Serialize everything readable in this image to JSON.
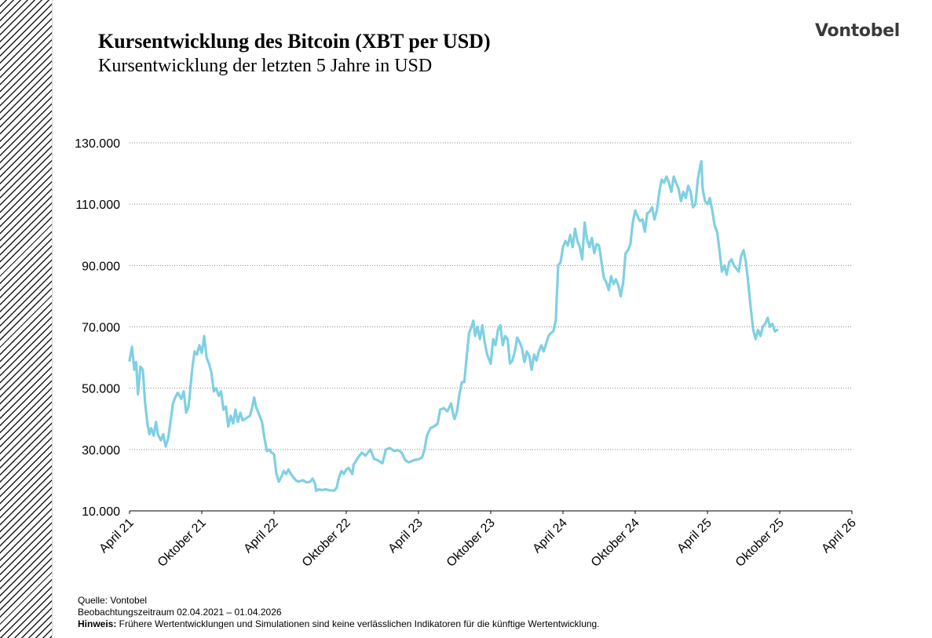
{
  "header": {
    "title": "Kursentwicklung des Bitcoin (XBT per USD)",
    "subtitle": "Kursentwicklung der letzten 5 Jahre in USD",
    "logo_text": "Vontobel"
  },
  "footer": {
    "source": "Quelle: Vontobel",
    "period": "Beobachtungszeitraum  02.04.2021 – 01.04.2026",
    "note_label": "Hinweis:",
    "note_text": " Frühere Wertentwicklungen und Simulationen sind keine verlässlichen Indikatoren für die künftige Wertentwicklung."
  },
  "colors": {
    "line": "#7fd0e2",
    "grid": "#888888",
    "hatch": "#1a1a1a"
  },
  "chart_data": {
    "type": "line",
    "title": "Kursentwicklung des Bitcoin (XBT per USD)",
    "subtitle": "Kursentwicklung der letzten 5 Jahre in USD",
    "xlabel": "",
    "ylabel": "",
    "ylim": [
      10000,
      130000
    ],
    "y_ticks": [
      10000,
      30000,
      50000,
      70000,
      90000,
      110000,
      130000
    ],
    "y_tick_labels": [
      "10.000",
      "30.000",
      "50.000",
      "70.000",
      "90.000",
      "110.000",
      "130.000"
    ],
    "x_tick_labels": [
      "April 21",
      "Oktober 21",
      "April 22",
      "Oktober 22",
      "April 23",
      "Oktober 23",
      "April 24",
      "Oktober 24",
      "April 25",
      "Oktober 25",
      "April 26"
    ],
    "grid": "horizontal dotted",
    "x_unit": "months since April 2021",
    "series": [
      {
        "values": [
          [
            0.0,
            59000
          ],
          [
            0.2,
            63500
          ],
          [
            0.4,
            56000
          ],
          [
            0.55,
            58500
          ],
          [
            0.7,
            48000
          ],
          [
            0.9,
            57000
          ],
          [
            1.1,
            56000
          ],
          [
            1.3,
            45000
          ],
          [
            1.5,
            38000
          ],
          [
            1.65,
            35000
          ],
          [
            1.8,
            37000
          ],
          [
            2.0,
            34500
          ],
          [
            2.2,
            39000
          ],
          [
            2.35,
            35000
          ],
          [
            2.6,
            33000
          ],
          [
            2.8,
            35000
          ],
          [
            3.0,
            31000
          ],
          [
            3.2,
            33500
          ],
          [
            3.4,
            39000
          ],
          [
            3.6,
            45000
          ],
          [
            3.8,
            47000
          ],
          [
            4.0,
            48500
          ],
          [
            4.3,
            46500
          ],
          [
            4.5,
            49000
          ],
          [
            4.7,
            42000
          ],
          [
            4.9,
            44000
          ],
          [
            5.0,
            48000
          ],
          [
            5.2,
            56000
          ],
          [
            5.4,
            62000
          ],
          [
            5.6,
            61000
          ],
          [
            5.8,
            64000
          ],
          [
            6.0,
            61500
          ],
          [
            6.2,
            67000
          ],
          [
            6.4,
            60000
          ],
          [
            6.6,
            58000
          ],
          [
            6.8,
            55000
          ],
          [
            7.0,
            49000
          ],
          [
            7.2,
            50000
          ],
          [
            7.4,
            47500
          ],
          [
            7.6,
            49000
          ],
          [
            7.8,
            43000
          ],
          [
            8.0,
            44000
          ],
          [
            8.2,
            37500
          ],
          [
            8.4,
            41000
          ],
          [
            8.6,
            38500
          ],
          [
            8.8,
            43000
          ],
          [
            9.0,
            39000
          ],
          [
            9.2,
            42000
          ],
          [
            9.4,
            39500
          ],
          [
            10.0,
            41000
          ],
          [
            10.2,
            44000
          ],
          [
            10.35,
            47000
          ],
          [
            10.5,
            44000
          ],
          [
            10.7,
            42000
          ],
          [
            11.0,
            39000
          ],
          [
            11.2,
            34000
          ],
          [
            11.4,
            29500
          ],
          [
            11.6,
            30000
          ],
          [
            11.8,
            29000
          ],
          [
            12.0,
            28500
          ],
          [
            12.2,
            22000
          ],
          [
            12.4,
            19500
          ],
          [
            12.6,
            21000
          ],
          [
            12.8,
            23000
          ],
          [
            13.0,
            22000
          ],
          [
            13.2,
            23500
          ],
          [
            13.4,
            22000
          ],
          [
            13.6,
            21000
          ],
          [
            13.8,
            20000
          ],
          [
            14.0,
            19500
          ],
          [
            14.4,
            20000
          ],
          [
            14.7,
            19300
          ],
          [
            15.0,
            19500
          ],
          [
            15.2,
            20500
          ],
          [
            15.4,
            19000
          ],
          [
            15.5,
            16500
          ],
          [
            15.7,
            17000
          ],
          [
            16.0,
            16800
          ],
          [
            16.3,
            17000
          ],
          [
            16.6,
            16700
          ],
          [
            17.0,
            16600
          ],
          [
            17.2,
            17500
          ],
          [
            17.4,
            21000
          ],
          [
            17.6,
            23000
          ],
          [
            17.8,
            22000
          ],
          [
            18.0,
            23500
          ],
          [
            18.2,
            24000
          ],
          [
            18.5,
            22000
          ],
          [
            18.6,
            25000
          ],
          [
            19.0,
            27500
          ],
          [
            19.3,
            29000
          ],
          [
            19.6,
            28000
          ],
          [
            20.0,
            30000
          ],
          [
            20.3,
            27000
          ],
          [
            20.6,
            26500
          ],
          [
            21.0,
            25500
          ],
          [
            21.3,
            30000
          ],
          [
            21.6,
            30500
          ],
          [
            22.0,
            29500
          ],
          [
            22.3,
            29800
          ],
          [
            22.6,
            29000
          ],
          [
            22.9,
            26500
          ],
          [
            23.2,
            25800
          ],
          [
            23.6,
            26500
          ],
          [
            24.0,
            26800
          ],
          [
            24.3,
            27500
          ],
          [
            24.5,
            30000
          ],
          [
            24.7,
            34500
          ],
          [
            25.0,
            37000
          ],
          [
            25.3,
            37500
          ],
          [
            25.6,
            38500
          ],
          [
            25.8,
            43000
          ],
          [
            26.1,
            43500
          ],
          [
            26.4,
            42500
          ],
          [
            26.7,
            45000
          ],
          [
            26.9,
            41000
          ],
          [
            27.0,
            40000
          ],
          [
            27.2,
            42500
          ],
          [
            27.4,
            48000
          ],
          [
            27.6,
            52000
          ],
          [
            27.8,
            52000
          ],
          [
            28.0,
            60000
          ],
          [
            28.2,
            68000
          ],
          [
            28.4,
            70000
          ],
          [
            28.55,
            72000
          ],
          [
            28.7,
            67000
          ],
          [
            28.9,
            70000
          ],
          [
            29.1,
            66000
          ],
          [
            29.3,
            70500
          ],
          [
            29.5,
            65000
          ],
          [
            29.7,
            61000
          ],
          [
            29.8,
            60000
          ],
          [
            30.0,
            58000
          ],
          [
            30.2,
            66000
          ],
          [
            30.4,
            64000
          ],
          [
            30.6,
            69000
          ],
          [
            30.8,
            70500
          ],
          [
            31.0,
            64000
          ],
          [
            31.2,
            67000
          ],
          [
            31.4,
            66000
          ],
          [
            31.6,
            58000
          ],
          [
            31.8,
            59000
          ],
          [
            32.0,
            62000
          ],
          [
            32.2,
            66500
          ],
          [
            32.4,
            65000
          ],
          [
            32.6,
            63000
          ],
          [
            32.8,
            58500
          ],
          [
            33.0,
            62000
          ],
          [
            33.2,
            60500
          ],
          [
            33.4,
            56000
          ],
          [
            33.6,
            61000
          ],
          [
            33.8,
            59000
          ],
          [
            34.0,
            62000
          ],
          [
            34.2,
            64000
          ],
          [
            34.4,
            62000
          ],
          [
            34.6,
            64500
          ],
          [
            34.8,
            67000
          ],
          [
            35.0,
            68000
          ],
          [
            35.2,
            68500
          ],
          [
            35.4,
            72000
          ],
          [
            35.6,
            90000
          ],
          [
            35.8,
            91000
          ],
          [
            36.0,
            96000
          ],
          [
            36.2,
            98000
          ],
          [
            36.4,
            96500
          ],
          [
            36.6,
            100000
          ],
          [
            36.8,
            96000
          ],
          [
            37.0,
            102000
          ],
          [
            37.2,
            98000
          ],
          [
            37.4,
            96000
          ],
          [
            37.6,
            92000
          ],
          [
            37.8,
            104000
          ],
          [
            38.0,
            98500
          ],
          [
            38.2,
            96000
          ],
          [
            38.4,
            99000
          ],
          [
            38.6,
            94000
          ],
          [
            38.8,
            97000
          ],
          [
            39.0,
            96500
          ],
          [
            39.2,
            91000
          ],
          [
            39.4,
            86000
          ],
          [
            39.6,
            84500
          ],
          [
            39.8,
            82000
          ],
          [
            40.0,
            86500
          ],
          [
            40.2,
            84000
          ],
          [
            40.4,
            85500
          ],
          [
            40.6,
            83500
          ],
          [
            40.8,
            80000
          ],
          [
            41.0,
            84500
          ],
          [
            41.2,
            94000
          ],
          [
            41.4,
            95000
          ],
          [
            41.6,
            97000
          ],
          [
            41.8,
            104000
          ],
          [
            42.0,
            108000
          ],
          [
            42.2,
            106000
          ],
          [
            42.4,
            104500
          ],
          [
            42.6,
            105000
          ],
          [
            42.8,
            101000
          ],
          [
            43.0,
            107000
          ],
          [
            43.2,
            107500
          ],
          [
            43.4,
            109000
          ],
          [
            43.6,
            105000
          ],
          [
            43.8,
            108000
          ],
          [
            44.0,
            114000
          ],
          [
            44.2,
            118000
          ],
          [
            44.4,
            117000
          ],
          [
            44.6,
            119000
          ],
          [
            44.8,
            117000
          ],
          [
            45.0,
            114000
          ],
          [
            45.2,
            119000
          ],
          [
            45.4,
            117000
          ],
          [
            45.6,
            115000
          ],
          [
            45.8,
            111000
          ],
          [
            46.0,
            114000
          ],
          [
            46.2,
            112000
          ],
          [
            46.4,
            116000
          ],
          [
            46.6,
            114000
          ],
          [
            46.8,
            109000
          ],
          [
            47.0,
            110000
          ],
          [
            47.2,
            118000
          ],
          [
            47.4,
            122500
          ],
          [
            47.5,
            124000
          ],
          [
            47.6,
            115000
          ],
          [
            47.8,
            111000
          ],
          [
            48.0,
            110000
          ],
          [
            48.2,
            112000
          ],
          [
            48.4,
            108000
          ],
          [
            48.6,
            103000
          ],
          [
            48.8,
            101000
          ],
          [
            49.0,
            95000
          ],
          [
            49.2,
            88000
          ],
          [
            49.4,
            90000
          ],
          [
            49.6,
            87000
          ],
          [
            49.8,
            91000
          ],
          [
            50.0,
            92000
          ],
          [
            50.2,
            90000
          ],
          [
            50.4,
            89000
          ],
          [
            50.6,
            88000
          ],
          [
            50.8,
            93000
          ],
          [
            51.0,
            95000
          ],
          [
            51.2,
            91000
          ],
          [
            51.4,
            84000
          ],
          [
            51.6,
            76000
          ],
          [
            51.8,
            69000
          ],
          [
            52.0,
            66000
          ],
          [
            52.2,
            69000
          ],
          [
            52.4,
            67000
          ],
          [
            52.6,
            70000
          ],
          [
            52.8,
            71000
          ],
          [
            53.0,
            73000
          ],
          [
            53.2,
            70000
          ],
          [
            53.4,
            71000
          ],
          [
            53.6,
            68500
          ],
          [
            53.8,
            69000
          ]
        ]
      }
    ]
  }
}
